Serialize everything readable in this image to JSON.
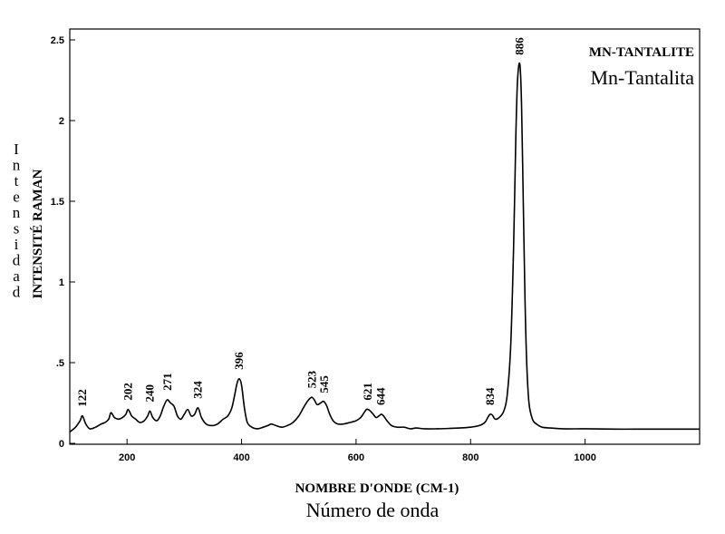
{
  "chart_data": {
    "type": "line",
    "title": "MN-TANTALITE",
    "subtitle": "Mn-Tantalita",
    "xlabel": "NOMBRE D'ONDE (CM-1)",
    "xlabel_es": "Número de onda",
    "ylabel": "INTENSITÉ RAMAN",
    "ylabel_es": "Intensidad",
    "xlim": [
      100,
      1200
    ],
    "ylim": [
      0,
      2.55
    ],
    "x_ticks": [
      200,
      400,
      600,
      800,
      1000
    ],
    "x_tick_labels": [
      "200",
      "400",
      "600",
      "800",
      "1000"
    ],
    "y_ticks": [
      0,
      0.5,
      1,
      1.5,
      2,
      2.5
    ],
    "y_tick_labels": [
      "0",
      ".5",
      "1",
      "1.5",
      "2",
      "2.5"
    ],
    "grid": false,
    "line_color": "#000000",
    "series": [
      {
        "x": [
          100,
          110,
          118,
          122,
          128,
          135,
          145,
          155,
          162,
          168,
          172,
          178,
          185,
          192,
          198,
          202,
          208,
          215,
          222,
          230,
          236,
          240,
          245,
          252,
          258,
          263,
          268,
          271,
          276,
          282,
          288,
          294,
          300,
          306,
          312,
          318,
          324,
          330,
          338,
          348,
          358,
          368,
          376,
          383,
          388,
          392,
          396,
          400,
          405,
          410,
          418,
          428,
          438,
          446,
          452,
          460,
          470,
          480,
          490,
          500,
          508,
          515,
          520,
          523,
          527,
          532,
          538,
          542,
          545,
          549,
          554,
          560,
          568,
          578,
          590,
          600,
          608,
          614,
          618,
          621,
          625,
          630,
          635,
          640,
          644,
          648,
          654,
          662,
          672,
          684,
          695,
          705,
          720,
          740,
          760,
          780,
          800,
          815,
          825,
          830,
          834,
          838,
          843,
          850,
          858,
          864,
          870,
          875,
          879,
          882,
          886,
          889,
          892,
          895,
          898,
          902,
          908,
          915,
          925,
          940,
          960,
          1000,
          1050,
          1100,
          1150,
          1200
        ],
        "y": [
          0.07,
          0.1,
          0.14,
          0.17,
          0.12,
          0.09,
          0.1,
          0.12,
          0.13,
          0.15,
          0.19,
          0.16,
          0.15,
          0.16,
          0.18,
          0.21,
          0.17,
          0.15,
          0.13,
          0.14,
          0.17,
          0.2,
          0.16,
          0.14,
          0.17,
          0.22,
          0.26,
          0.27,
          0.25,
          0.23,
          0.17,
          0.15,
          0.18,
          0.21,
          0.17,
          0.18,
          0.22,
          0.16,
          0.12,
          0.11,
          0.12,
          0.15,
          0.17,
          0.22,
          0.3,
          0.37,
          0.4,
          0.36,
          0.22,
          0.13,
          0.1,
          0.09,
          0.1,
          0.11,
          0.12,
          0.11,
          0.1,
          0.11,
          0.13,
          0.17,
          0.22,
          0.26,
          0.28,
          0.285,
          0.27,
          0.24,
          0.25,
          0.26,
          0.255,
          0.23,
          0.18,
          0.14,
          0.12,
          0.12,
          0.13,
          0.14,
          0.16,
          0.19,
          0.21,
          0.21,
          0.2,
          0.18,
          0.16,
          0.17,
          0.18,
          0.17,
          0.14,
          0.11,
          0.1,
          0.1,
          0.09,
          0.095,
          0.09,
          0.09,
          0.092,
          0.095,
          0.1,
          0.11,
          0.13,
          0.16,
          0.18,
          0.175,
          0.15,
          0.16,
          0.2,
          0.3,
          0.6,
          1.2,
          1.9,
          2.25,
          2.35,
          2.1,
          1.5,
          0.9,
          0.5,
          0.25,
          0.15,
          0.12,
          0.1,
          0.095,
          0.09,
          0.09,
          0.088,
          0.088,
          0.088,
          0.088
        ]
      }
    ],
    "peak_labels": [
      {
        "x": 122,
        "y": 0.17,
        "text": "122"
      },
      {
        "x": 202,
        "y": 0.21,
        "text": "202"
      },
      {
        "x": 240,
        "y": 0.2,
        "text": "240"
      },
      {
        "x": 271,
        "y": 0.27,
        "text": "271"
      },
      {
        "x": 324,
        "y": 0.22,
        "text": "324"
      },
      {
        "x": 396,
        "y": 0.4,
        "text": "396"
      },
      {
        "x": 523,
        "y": 0.285,
        "text": "523"
      },
      {
        "x": 545,
        "y": 0.255,
        "text": "545"
      },
      {
        "x": 621,
        "y": 0.21,
        "text": "621"
      },
      {
        "x": 644,
        "y": 0.18,
        "text": "644"
      },
      {
        "x": 834,
        "y": 0.18,
        "text": "834"
      },
      {
        "x": 886,
        "y": 2.35,
        "text": "886"
      }
    ]
  }
}
